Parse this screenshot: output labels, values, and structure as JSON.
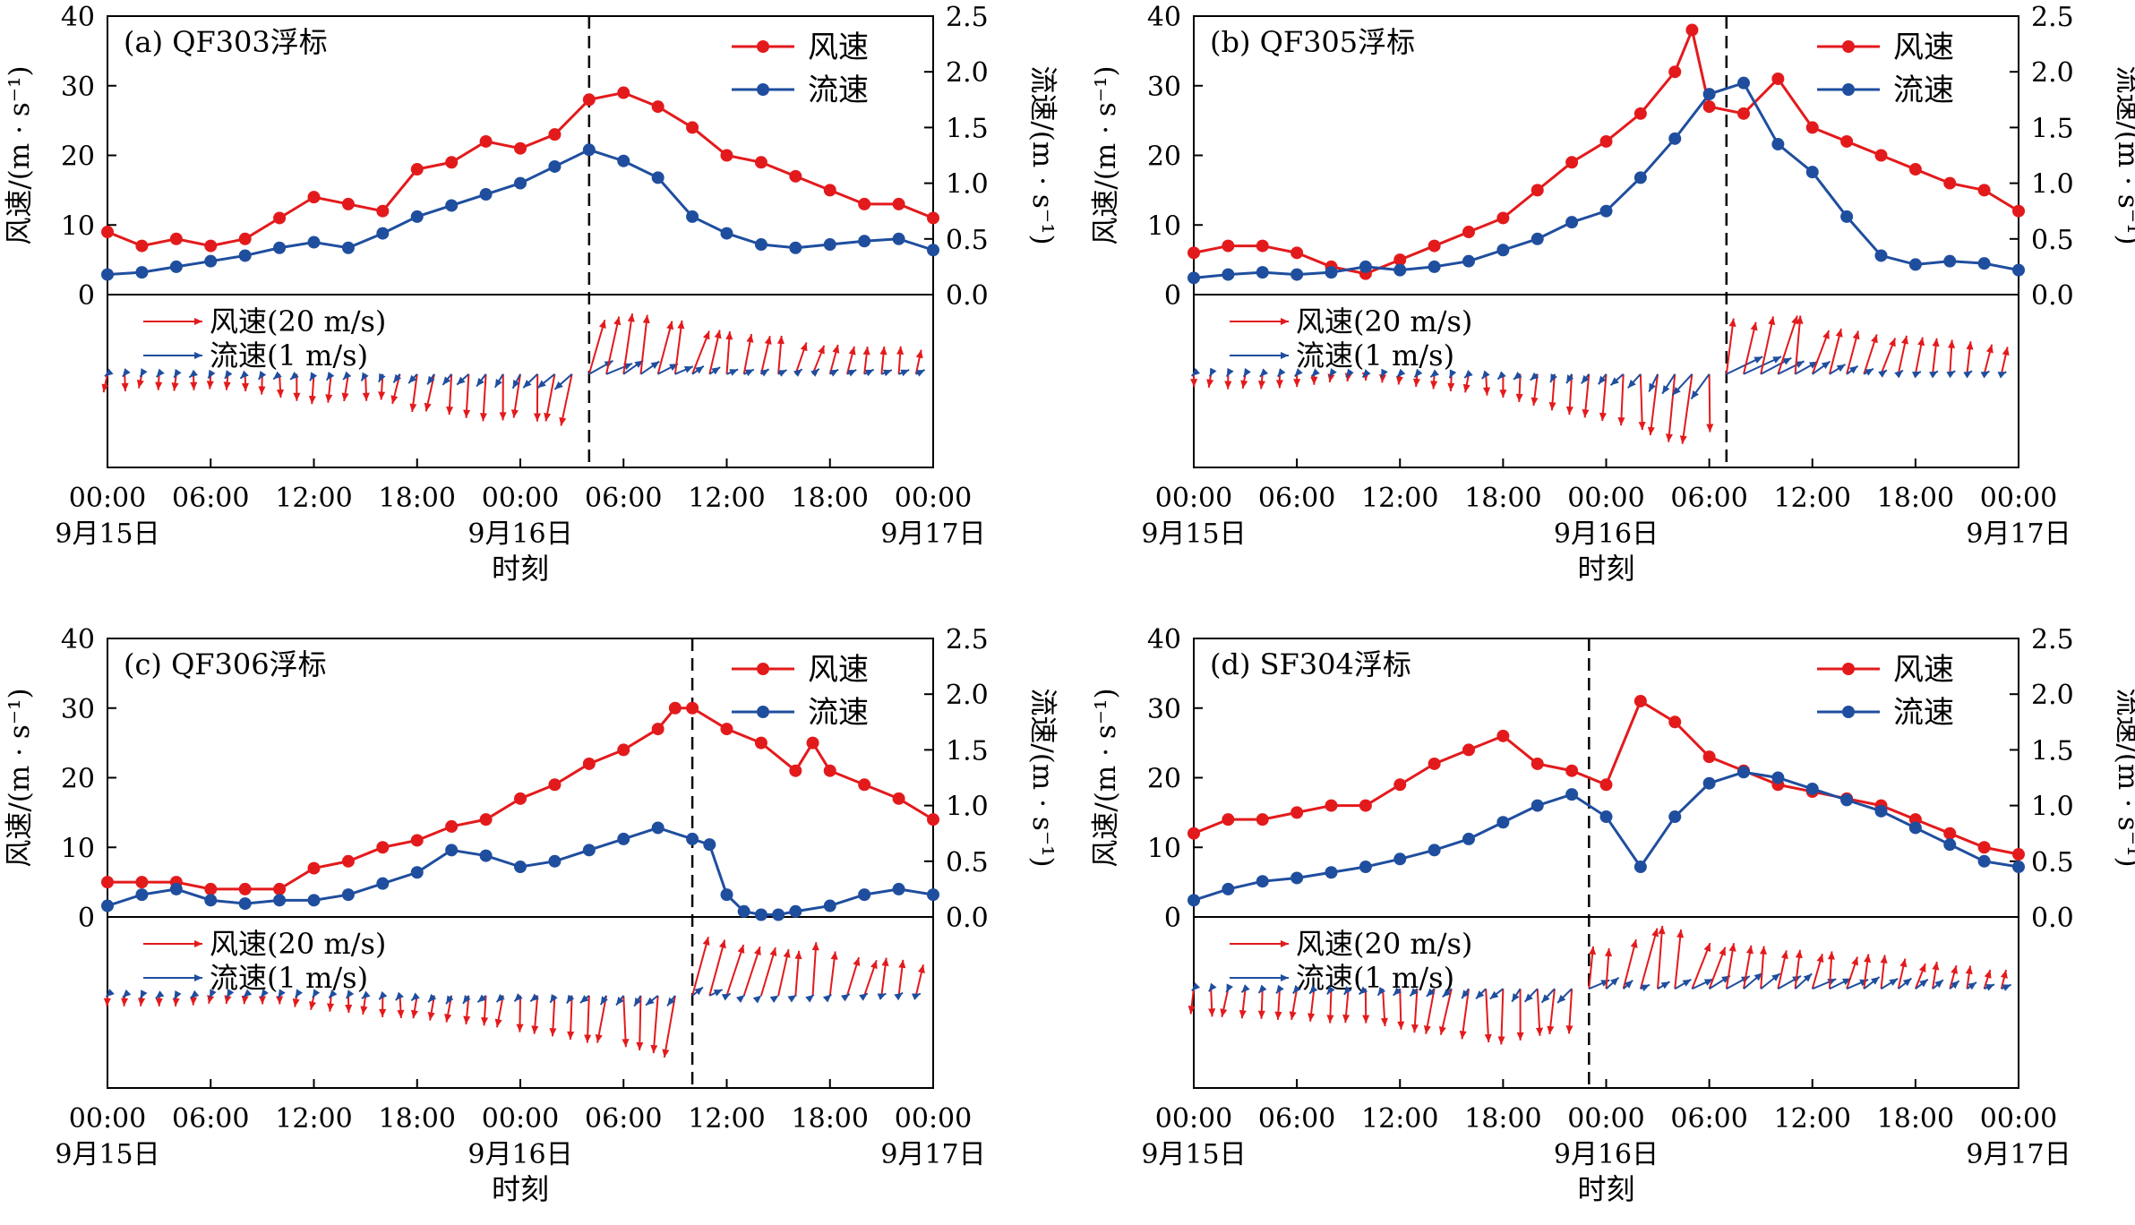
{
  "colors": {
    "wind": "#e31a1c",
    "current": "#1f4e9e",
    "axis": "#000000"
  },
  "labels": {
    "wind_series": "风速",
    "current_series": "流速",
    "wind_vec_legend": "风速(20 m/s)",
    "current_vec_legend": "流速(1 m/s)",
    "y_left": "风速/(m · s⁻¹)",
    "y_right": "流速/(m · s⁻¹)",
    "x_title": "时刻",
    "x_ticks": [
      "00:00",
      "06:00",
      "12:00",
      "18:00",
      "00:00",
      "06:00",
      "12:00",
      "18:00",
      "00:00"
    ],
    "date_labels": [
      "9月15日",
      "9月16日",
      "9月17日"
    ],
    "y_left_ticks": [
      "0",
      "10",
      "20",
      "30",
      "40"
    ],
    "y_right_ticks": [
      "0.0",
      "0.5",
      "1.0",
      "1.5",
      "2.0",
      "2.5"
    ]
  },
  "chart_data": [
    {
      "type": "line",
      "title": "(a) QF303浮标",
      "xlabel": "时刻",
      "x_unit": "hours since 9月15日 00:00",
      "xlim": [
        0,
        48
      ],
      "ylim_left": [
        0,
        40
      ],
      "ylim_right": [
        0,
        2.5
      ],
      "dashed_line_x": 28,
      "series": [
        {
          "name": "风速",
          "axis": "left",
          "x": [
            0,
            2,
            4,
            6,
            8,
            10,
            12,
            14,
            16,
            18,
            20,
            22,
            24,
            26,
            28,
            30,
            32,
            34,
            36,
            38,
            40,
            42,
            44,
            46,
            48
          ],
          "y": [
            9,
            7,
            8,
            7,
            8,
            11,
            14,
            13,
            12,
            18,
            19,
            22,
            21,
            23,
            28,
            29,
            27,
            24,
            20,
            19,
            17,
            15,
            13,
            13,
            11
          ]
        },
        {
          "name": "流速",
          "axis": "right",
          "x": [
            0,
            2,
            4,
            6,
            8,
            10,
            12,
            14,
            16,
            18,
            20,
            22,
            24,
            26,
            28,
            30,
            32,
            34,
            36,
            38,
            40,
            42,
            44,
            46,
            48
          ],
          "y": [
            0.18,
            0.2,
            0.25,
            0.3,
            0.35,
            0.42,
            0.47,
            0.42,
            0.55,
            0.7,
            0.8,
            0.9,
            1.0,
            1.15,
            1.3,
            1.2,
            1.05,
            0.7,
            0.55,
            0.45,
            0.42,
            0.45,
            0.48,
            0.5,
            0.4
          ]
        }
      ]
    },
    {
      "type": "line",
      "title": "(b) QF305浮标",
      "xlabel": "时刻",
      "x_unit": "hours since 9月15日 00:00",
      "xlim": [
        0,
        48
      ],
      "ylim_left": [
        0,
        40
      ],
      "ylim_right": [
        0,
        2.5
      ],
      "dashed_line_x": 31,
      "series": [
        {
          "name": "风速",
          "axis": "left",
          "x": [
            0,
            2,
            4,
            6,
            8,
            10,
            12,
            14,
            16,
            18,
            20,
            22,
            24,
            26,
            28,
            29,
            30,
            32,
            34,
            36,
            38,
            40,
            42,
            44,
            46,
            48
          ],
          "y": [
            6,
            7,
            7,
            6,
            4,
            3,
            5,
            7,
            9,
            11,
            15,
            19,
            22,
            26,
            32,
            38,
            27,
            26,
            31,
            24,
            22,
            20,
            18,
            16,
            15,
            12
          ]
        },
        {
          "name": "流速",
          "axis": "right",
          "x": [
            0,
            2,
            4,
            6,
            8,
            10,
            12,
            14,
            16,
            18,
            20,
            22,
            24,
            26,
            28,
            30,
            32,
            34,
            36,
            38,
            40,
            42,
            44,
            46,
            48
          ],
          "y": [
            0.15,
            0.18,
            0.2,
            0.18,
            0.2,
            0.25,
            0.22,
            0.25,
            0.3,
            0.4,
            0.5,
            0.65,
            0.75,
            1.05,
            1.4,
            1.8,
            1.9,
            1.35,
            1.1,
            0.7,
            0.35,
            0.27,
            0.3,
            0.28,
            0.22
          ]
        }
      ]
    },
    {
      "type": "line",
      "title": "(c) QF306浮标",
      "xlabel": "时刻",
      "x_unit": "hours since 9月15日 00:00",
      "xlim": [
        0,
        48
      ],
      "ylim_left": [
        0,
        40
      ],
      "ylim_right": [
        0,
        2.5
      ],
      "dashed_line_x": 34,
      "series": [
        {
          "name": "风速",
          "axis": "left",
          "x": [
            0,
            2,
            4,
            6,
            8,
            10,
            12,
            14,
            16,
            18,
            20,
            22,
            24,
            26,
            28,
            30,
            32,
            33,
            34,
            36,
            38,
            40,
            41,
            42,
            44,
            46,
            48
          ],
          "y": [
            5,
            5,
            5,
            4,
            4,
            4,
            7,
            8,
            10,
            11,
            13,
            14,
            17,
            19,
            22,
            24,
            27,
            30,
            30,
            27,
            25,
            21,
            25,
            21,
            19,
            17,
            14
          ]
        },
        {
          "name": "流速",
          "axis": "right",
          "x": [
            0,
            2,
            4,
            6,
            8,
            10,
            12,
            14,
            16,
            18,
            20,
            22,
            24,
            26,
            28,
            30,
            32,
            34,
            35,
            36,
            37,
            38,
            39,
            40,
            42,
            44,
            46,
            48
          ],
          "y": [
            0.1,
            0.2,
            0.25,
            0.15,
            0.12,
            0.15,
            0.15,
            0.2,
            0.3,
            0.4,
            0.6,
            0.55,
            0.45,
            0.5,
            0.6,
            0.7,
            0.8,
            0.7,
            0.65,
            0.2,
            0.05,
            0.02,
            0.02,
            0.05,
            0.1,
            0.2,
            0.25,
            0.2
          ]
        }
      ]
    },
    {
      "type": "line",
      "title": "(d) SF304浮标",
      "xlabel": "时刻",
      "x_unit": "hours since 9月15日 00:00",
      "xlim": [
        0,
        48
      ],
      "ylim_left": [
        0,
        40
      ],
      "ylim_right": [
        0,
        2.5
      ],
      "dashed_line_x": 23,
      "series": [
        {
          "name": "风速",
          "axis": "left",
          "x": [
            0,
            2,
            4,
            6,
            8,
            10,
            12,
            14,
            16,
            18,
            20,
            22,
            24,
            26,
            28,
            30,
            32,
            34,
            36,
            38,
            40,
            42,
            44,
            46,
            48
          ],
          "y": [
            12,
            14,
            14,
            15,
            16,
            16,
            19,
            22,
            24,
            26,
            22,
            21,
            19,
            31,
            28,
            23,
            21,
            19,
            18,
            17,
            16,
            14,
            12,
            10,
            9
          ]
        },
        {
          "name": "流速",
          "axis": "right",
          "x": [
            0,
            2,
            4,
            6,
            8,
            10,
            12,
            14,
            16,
            18,
            20,
            22,
            24,
            26,
            28,
            30,
            32,
            34,
            36,
            38,
            40,
            42,
            44,
            46,
            48
          ],
          "y": [
            0.15,
            0.25,
            0.32,
            0.35,
            0.4,
            0.45,
            0.52,
            0.6,
            0.7,
            0.85,
            1.0,
            1.1,
            0.9,
            0.45,
            0.9,
            1.2,
            1.3,
            1.25,
            1.15,
            1.05,
            0.95,
            0.8,
            0.65,
            0.5,
            0.45
          ]
        }
      ]
    }
  ]
}
